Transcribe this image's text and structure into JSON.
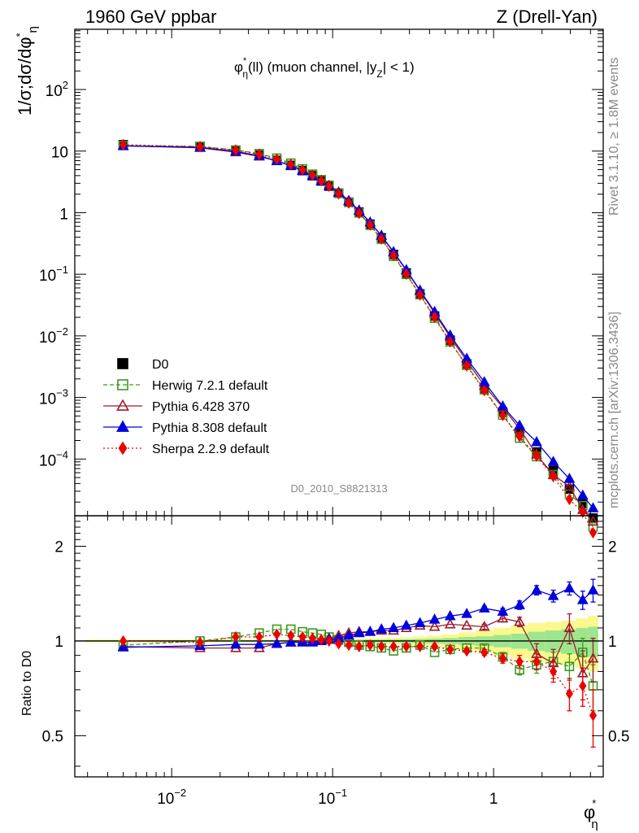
{
  "header": {
    "left": "1960 GeV ppbar",
    "right": "Z (Drell-Yan)"
  },
  "plot_title": {
    "phi": "φ",
    "star": "*",
    "eta": "η",
    "rest": "(ll) (muon channel, |y",
    "sub": "Z",
    "tail": "| < 1)"
  },
  "y_axis_label": {
    "main": "1/σ;dσ/dφ",
    "star": "*",
    "eta": "η"
  },
  "ratio_y_label": "Ratio to D0",
  "x_axis_label": {
    "phi": "φ",
    "star": "*",
    "eta": "η"
  },
  "side_text": {
    "rivet": "Rivet 3.1.10, ≥ 1.8M events",
    "mcplots": "mcplots.cern.ch [arXiv:1306.3436]"
  },
  "analysis_id": "D0_2010_S8821313",
  "legend": [
    {
      "label": "D0",
      "color": "#000000",
      "marker": "square-filled",
      "line": "none"
    },
    {
      "label": "Herwig 7.2.1 default",
      "color": "#3c9a1e",
      "marker": "square-open",
      "line": "dashed"
    },
    {
      "label": "Pythia 6.428 370",
      "color": "#9b1c2c",
      "marker": "triangle-open",
      "line": "solid"
    },
    {
      "label": "Pythia 8.308 default",
      "color": "#0000dd",
      "marker": "triangle-filled",
      "line": "solid"
    },
    {
      "label": "Sherpa 2.2.9 default",
      "color": "#ee0000",
      "marker": "diamond-filled",
      "line": "dotted"
    }
  ],
  "ticks": {
    "x_main": [
      {
        "b": "10",
        "e": "−2",
        "v": 0.01
      },
      {
        "b": "10",
        "e": "−1",
        "v": 0.1
      },
      {
        "b": "1",
        "e": "",
        "v": 1
      }
    ],
    "y_main": [
      {
        "b": "10",
        "e": "2",
        "v": 100
      },
      {
        "b": "10",
        "e": "",
        "v": 10
      },
      {
        "b": "1",
        "e": "",
        "v": 1
      },
      {
        "b": "10",
        "e": "−1",
        "v": 0.1
      },
      {
        "b": "10",
        "e": "−2",
        "v": 0.01
      },
      {
        "b": "10",
        "e": "−3",
        "v": 0.001
      },
      {
        "b": "10",
        "e": "−4",
        "v": 0.0001
      }
    ],
    "y_ratio": [
      {
        "label": "2",
        "v": 2
      },
      {
        "label": "1",
        "v": 1
      },
      {
        "label": "0.5",
        "v": 0.5
      }
    ]
  },
  "chart_data": [
    {
      "type": "line",
      "panel": "main",
      "x_scale": "log",
      "y_scale": "log",
      "xlim": [
        0.0025,
        4.8
      ],
      "ylim": [
        1.2e-05,
        950
      ],
      "x": [
        0.005,
        0.015,
        0.025,
        0.035,
        0.045,
        0.055,
        0.065,
        0.075,
        0.085,
        0.095,
        0.109,
        0.126,
        0.146,
        0.171,
        0.201,
        0.239,
        0.287,
        0.349,
        0.43,
        0.537,
        0.681,
        0.876,
        1.14,
        1.45,
        1.85,
        2.35,
        2.96,
        3.58,
        4.15
      ],
      "series": [
        {
          "name": "D0",
          "values": [
            12.7,
            11.9,
            10.1,
            8.6,
            7.05,
            5.85,
            4.82,
            3.98,
            3.27,
            2.7,
            2.07,
            1.48,
            1.02,
            0.65,
            0.39,
            0.21,
            0.105,
            0.048,
            0.021,
            0.0085,
            0.0035,
            0.0014,
            0.00058,
            0.00027,
            0.00013,
            6.5e-05,
            3.25e-05,
            1.9e-05,
            1.1e-05
          ]
        },
        {
          "name": "Herwig 7.2.1 default",
          "ratio": [
            0.97,
            1.0,
            1.03,
            1.06,
            1.09,
            1.09,
            1.07,
            1.06,
            1.05,
            1.03,
            1.01,
            0.99,
            0.97,
            0.96,
            0.95,
            0.93,
            0.95,
            0.97,
            0.92,
            0.94,
            0.95,
            0.95,
            0.89,
            0.81,
            0.84,
            0.86,
            0.83,
            0.92,
            0.72
          ]
        },
        {
          "name": "Pythia 6.428 370",
          "ratio": [
            0.96,
            0.95,
            0.95,
            0.95,
            0.98,
            0.99,
            1.0,
            1.0,
            1.01,
            1.02,
            1.04,
            1.06,
            1.07,
            1.07,
            1.08,
            1.08,
            1.1,
            1.12,
            1.11,
            1.13,
            1.12,
            1.11,
            1.18,
            1.15,
            0.91,
            0.85,
            1.1,
            0.79,
            0.88
          ]
        },
        {
          "name": "Pythia 8.308 default",
          "ratio": [
            0.955,
            0.965,
            0.975,
            0.975,
            0.98,
            0.99,
            0.99,
            0.99,
            1.0,
            1.01,
            1.02,
            1.04,
            1.06,
            1.07,
            1.09,
            1.1,
            1.12,
            1.14,
            1.17,
            1.2,
            1.22,
            1.27,
            1.24,
            1.3,
            1.45,
            1.39,
            1.47,
            1.35,
            1.45
          ]
        },
        {
          "name": "Sherpa 2.2.9 default",
          "ratio": [
            1.0,
            0.99,
            1.03,
            1.03,
            1.05,
            1.04,
            1.03,
            1.02,
            1.01,
            1.0,
            0.98,
            0.97,
            0.96,
            0.97,
            0.96,
            0.96,
            0.96,
            0.96,
            0.96,
            0.94,
            0.93,
            0.92,
            0.88,
            0.86,
            0.86,
            0.8,
            0.68,
            0.72,
            0.58
          ]
        }
      ]
    },
    {
      "type": "line",
      "panel": "ratio",
      "title": "Ratio to D0",
      "x_scale": "log",
      "y_scale": "log",
      "xlim": [
        0.0025,
        4.8
      ],
      "ylim": [
        0.37,
        2.5
      ],
      "reference": 1,
      "band_inner_half": [
        0.005,
        0.005,
        0.005,
        0.005,
        0.005,
        0.005,
        0.006,
        0.006,
        0.006,
        0.006,
        0.007,
        0.007,
        0.008,
        0.009,
        0.01,
        0.011,
        0.013,
        0.015,
        0.018,
        0.022,
        0.03,
        0.035,
        0.045,
        0.055,
        0.07,
        0.08,
        0.09,
        0.1,
        0.11
      ],
      "band_outer_half": [
        0.01,
        0.01,
        0.01,
        0.01,
        0.01,
        0.011,
        0.012,
        0.012,
        0.012,
        0.013,
        0.014,
        0.015,
        0.017,
        0.019,
        0.021,
        0.024,
        0.028,
        0.033,
        0.04,
        0.05,
        0.065,
        0.08,
        0.1,
        0.12,
        0.14,
        0.15,
        0.16,
        0.18,
        0.2
      ],
      "error_bars": {
        "Pythia 8.308 default": [
          0,
          0,
          0,
          0,
          0,
          0,
          0,
          0,
          0,
          0,
          0,
          0,
          0,
          0,
          0,
          0,
          0,
          0,
          0,
          0,
          0,
          0.02,
          0.03,
          0.04,
          0.05,
          0.06,
          0.07,
          0.09,
          0.12
        ],
        "Pythia 6.428 370": [
          0,
          0,
          0,
          0,
          0,
          0,
          0,
          0,
          0,
          0,
          0,
          0,
          0,
          0,
          0,
          0,
          0,
          0,
          0,
          0,
          0,
          0.02,
          0.03,
          0.04,
          0.07,
          0.09,
          0.12,
          0.14,
          0.14
        ],
        "Herwig 7.2.1 default": [
          0,
          0,
          0,
          0,
          0,
          0,
          0,
          0,
          0,
          0,
          0,
          0,
          0,
          0,
          0,
          0,
          0,
          0,
          0,
          0,
          0,
          0.02,
          0.03,
          0.03,
          0.05,
          0.06,
          0.08,
          0.1,
          0.12
        ],
        "Sherpa 2.2.9 default": [
          0,
          0,
          0,
          0,
          0,
          0,
          0,
          0,
          0,
          0,
          0,
          0,
          0,
          0,
          0,
          0,
          0,
          0,
          0,
          0,
          0,
          0.02,
          0.03,
          0.04,
          0.05,
          0.06,
          0.08,
          0.1,
          0.12
        ]
      }
    }
  ]
}
